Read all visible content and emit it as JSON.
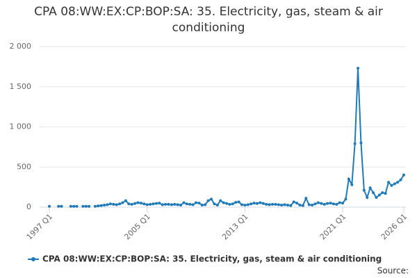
{
  "chart_data": {
    "type": "line",
    "title": "CPA 08:WW:EX:CP:BOP:SA: 35. Electricity, gas, steam & air conditioning",
    "source_label": "Source:",
    "categories": [
      "1997 Q1",
      null,
      null,
      null,
      null,
      null,
      null,
      null,
      null,
      null,
      null,
      null,
      null,
      null,
      null,
      null,
      null,
      null,
      null,
      null,
      null,
      null,
      null,
      null,
      null,
      null,
      null,
      null,
      null,
      null,
      null,
      null,
      "2005 Q1",
      null,
      null,
      null,
      null,
      null,
      null,
      null,
      null,
      null,
      null,
      null,
      null,
      null,
      null,
      null,
      null,
      null,
      null,
      null,
      null,
      null,
      null,
      null,
      null,
      null,
      null,
      null,
      null,
      null,
      null,
      null,
      "2013 Q1",
      null,
      null,
      null,
      null,
      null,
      null,
      null,
      null,
      null,
      null,
      null,
      null,
      null,
      null,
      null,
      null,
      null,
      null,
      null,
      null,
      null,
      null,
      null,
      null,
      null,
      null,
      null,
      null,
      null,
      null,
      null,
      "2021 Q1",
      null,
      null,
      null,
      null,
      null,
      null,
      null,
      null,
      null,
      null,
      null,
      null,
      null,
      null,
      null,
      null,
      null,
      null,
      null,
      "2026 Q1"
    ],
    "series": [
      {
        "name": "CPA 08:WW:EX:CP:BOP:SA: 35. Electricity, gas, steam & air conditioning",
        "color": "#1f7ab7",
        "values": [
          10,
          null,
          null,
          10,
          10,
          null,
          null,
          10,
          10,
          10,
          null,
          10,
          10,
          10,
          null,
          10,
          15,
          20,
          25,
          30,
          40,
          35,
          30,
          40,
          55,
          80,
          40,
          35,
          45,
          55,
          50,
          40,
          30,
          35,
          40,
          45,
          50,
          30,
          35,
          35,
          30,
          35,
          30,
          25,
          55,
          40,
          35,
          30,
          55,
          50,
          25,
          30,
          80,
          100,
          40,
          25,
          80,
          55,
          45,
          35,
          40,
          60,
          65,
          30,
          25,
          30,
          40,
          50,
          45,
          55,
          45,
          35,
          30,
          35,
          35,
          30,
          25,
          30,
          25,
          20,
          65,
          50,
          25,
          20,
          110,
          30,
          25,
          40,
          55,
          45,
          35,
          45,
          50,
          40,
          35,
          55,
          50,
          100,
          350,
          280,
          790,
          1730,
          800,
          210,
          120,
          240,
          180,
          120,
          150,
          180,
          170,
          310,
          270,
          290,
          310,
          340,
          400
        ]
      }
    ],
    "ylim": [
      0,
      2000
    ],
    "yticks": [
      0,
      500,
      {
        "value": 1000,
        "label": "1 000"
      },
      {
        "value": 1500,
        "label": "1 500"
      },
      {
        "value": 2000,
        "label": "2 000"
      }
    ],
    "grid": true
  }
}
